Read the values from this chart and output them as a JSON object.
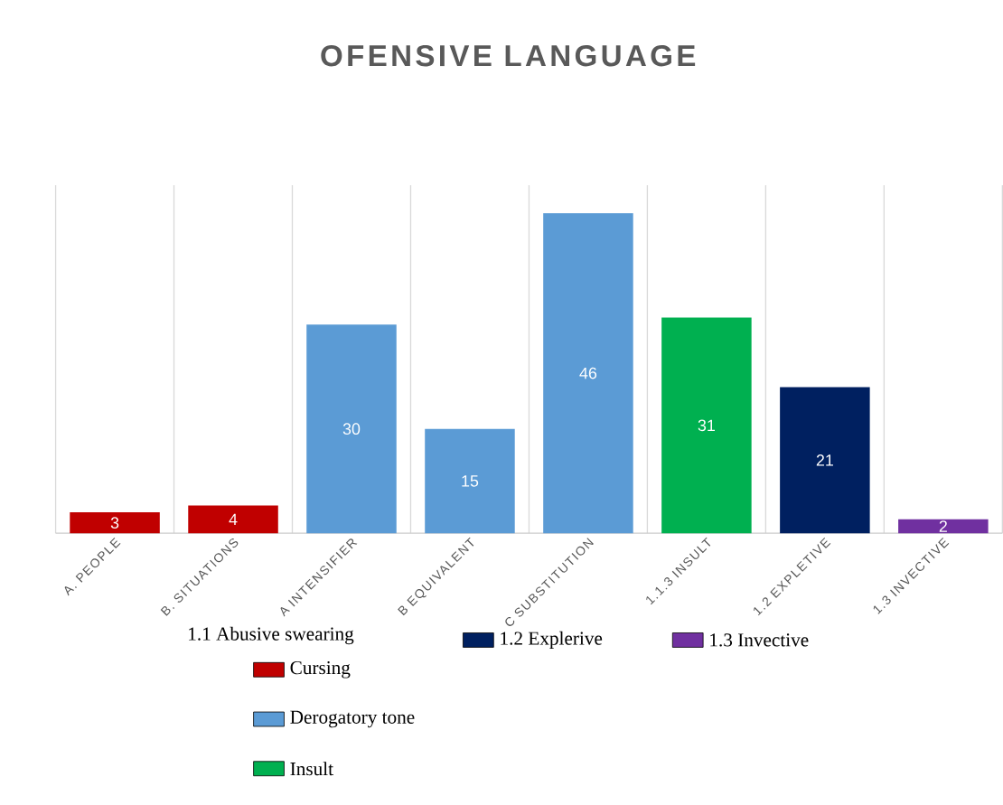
{
  "chart_data": {
    "type": "bar",
    "title": "OFENSIVE LANGUAGE",
    "categories": [
      "A. PEOPLE",
      "B. SITUATIONS",
      "A INTENSIFIER",
      "B EQUIVALENT",
      "C SUBSTITUTION",
      "1.1.3 INSULT",
      "1.2 EXPLETIVE",
      "1.3 INVECTIVE"
    ],
    "series": [
      {
        "name": "Cursing",
        "color": "#c00000",
        "values": [
          3,
          4,
          null,
          null,
          null,
          null,
          null,
          null
        ]
      },
      {
        "name": "Derogatory tone",
        "color": "#5b9bd5",
        "values": [
          null,
          null,
          30,
          15,
          46,
          null,
          null,
          null
        ]
      },
      {
        "name": "Insult",
        "color": "#00b050",
        "values": [
          null,
          null,
          null,
          null,
          null,
          31,
          null,
          null
        ]
      },
      {
        "name": "1.2 Explerive",
        "color": "#002060",
        "values": [
          null,
          null,
          null,
          null,
          null,
          null,
          21,
          null
        ]
      },
      {
        "name": "1.3 Invective",
        "color": "#7030a0",
        "values": [
          null,
          null,
          null,
          null,
          null,
          null,
          null,
          2
        ]
      }
    ],
    "legend_title": "1.1 Abusive swearing",
    "ylim": [
      0,
      50
    ],
    "data_labels": true,
    "grid": "x",
    "legend": "bottom",
    "tick_labels": "x"
  }
}
